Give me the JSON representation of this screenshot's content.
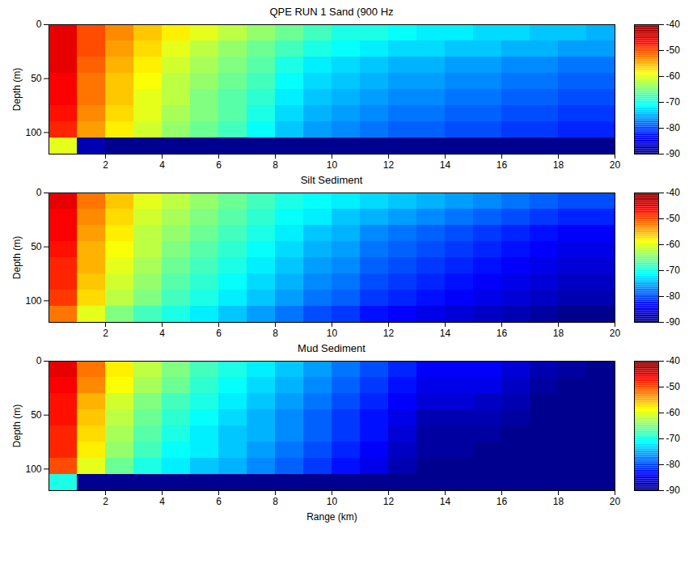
{
  "chart_data": [
    {
      "type": "heatmap",
      "title": "QPE RUN 1 Sand (900 Hz",
      "y_label": "Depth (m)",
      "x": [
        0.5,
        1.5,
        2.5,
        3.5,
        4.5,
        5.5,
        6.5,
        7.5,
        8.5,
        9.5,
        10.5,
        11.5,
        12.5,
        13.5,
        14.5,
        15.5,
        16.5,
        17.5,
        18.5,
        19.5
      ],
      "y": [
        7.5,
        22.5,
        37.5,
        52.5,
        67.5,
        82.5,
        97.5,
        112.5
      ],
      "values": [
        [
          -45,
          -50,
          -53,
          -56,
          -58,
          -60,
          -62,
          -64,
          -66,
          -68,
          -70,
          -70,
          -71,
          -72,
          -72,
          -73,
          -73,
          -74,
          -74,
          -75
        ],
        [
          -45,
          -50,
          -54,
          -57,
          -60,
          -62,
          -64,
          -66,
          -68,
          -70,
          -71,
          -72,
          -73,
          -73,
          -74,
          -74,
          -75,
          -75,
          -76,
          -76
        ],
        [
          -45,
          -51,
          -55,
          -58,
          -61,
          -63,
          -65,
          -67,
          -70,
          -72,
          -73,
          -74,
          -75,
          -75,
          -76,
          -76,
          -77,
          -77,
          -78,
          -78
        ],
        [
          -46,
          -52,
          -56,
          -59,
          -62,
          -64,
          -66,
          -68,
          -71,
          -73,
          -74,
          -75,
          -76,
          -76,
          -77,
          -77,
          -78,
          -78,
          -79,
          -79
        ],
        [
          -46,
          -52,
          -56,
          -60,
          -62,
          -65,
          -67,
          -69,
          -72,
          -74,
          -75,
          -76,
          -77,
          -77,
          -78,
          -78,
          -79,
          -79,
          -80,
          -80
        ],
        [
          -47,
          -53,
          -57,
          -60,
          -63,
          -65,
          -67,
          -70,
          -73,
          -75,
          -76,
          -77,
          -78,
          -78,
          -79,
          -79,
          -80,
          -80,
          -81,
          -81
        ],
        [
          -48,
          -54,
          -58,
          -61,
          -64,
          -66,
          -68,
          -71,
          -74,
          -76,
          -77,
          -78,
          -79,
          -79,
          -80,
          -80,
          -81,
          -81,
          -82,
          -82
        ],
        [
          -60,
          -88,
          -90,
          -90,
          -90,
          -90,
          -90,
          -90,
          -90,
          -90,
          -90,
          -90,
          -90,
          -90,
          -90,
          -90,
          -90,
          -90,
          -90,
          -90
        ]
      ],
      "xlim": [
        0,
        20
      ],
      "xticks": [
        2,
        4,
        6,
        8,
        10,
        12,
        14,
        16,
        18,
        20
      ],
      "ylim": [
        0,
        120
      ],
      "yticks": [
        0,
        50,
        100
      ],
      "colorbar": {
        "range": [
          -90,
          -40
        ],
        "ticks": [
          -40,
          -50,
          -60,
          -70,
          -80,
          -90
        ]
      }
    },
    {
      "type": "heatmap",
      "title": "Silt Sediment",
      "y_label": "Depth (m)",
      "x": [
        0.5,
        1.5,
        2.5,
        3.5,
        4.5,
        5.5,
        6.5,
        7.5,
        8.5,
        9.5,
        10.5,
        11.5,
        12.5,
        13.5,
        14.5,
        15.5,
        16.5,
        17.5,
        18.5,
        19.5
      ],
      "y": [
        7.5,
        22.5,
        37.5,
        52.5,
        67.5,
        82.5,
        97.5,
        112.5
      ],
      "values": [
        [
          -45,
          -52,
          -56,
          -60,
          -62,
          -64,
          -66,
          -68,
          -70,
          -71,
          -72,
          -73,
          -74,
          -75,
          -76,
          -77,
          -78,
          -79,
          -80,
          -80
        ],
        [
          -46,
          -53,
          -57,
          -61,
          -63,
          -65,
          -67,
          -69,
          -71,
          -72,
          -74,
          -75,
          -76,
          -77,
          -78,
          -79,
          -80,
          -81,
          -82,
          -82
        ],
        [
          -46,
          -54,
          -58,
          -62,
          -64,
          -66,
          -68,
          -70,
          -72,
          -74,
          -75,
          -77,
          -78,
          -79,
          -80,
          -81,
          -82,
          -83,
          -84,
          -84
        ],
        [
          -47,
          -55,
          -59,
          -62,
          -65,
          -67,
          -69,
          -71,
          -73,
          -75,
          -76,
          -78,
          -79,
          -80,
          -81,
          -82,
          -83,
          -84,
          -85,
          -85
        ],
        [
          -48,
          -55,
          -60,
          -63,
          -66,
          -68,
          -70,
          -72,
          -74,
          -76,
          -77,
          -79,
          -80,
          -81,
          -82,
          -83,
          -84,
          -85,
          -86,
          -86
        ],
        [
          -48,
          -56,
          -61,
          -64,
          -67,
          -69,
          -71,
          -73,
          -75,
          -77,
          -78,
          -80,
          -81,
          -82,
          -83,
          -84,
          -85,
          -86,
          -87,
          -87
        ],
        [
          -49,
          -57,
          -62,
          -65,
          -68,
          -70,
          -72,
          -74,
          -76,
          -78,
          -79,
          -81,
          -82,
          -83,
          -84,
          -85,
          -86,
          -87,
          -88,
          -88
        ],
        [
          -52,
          -60,
          -65,
          -68,
          -70,
          -72,
          -74,
          -76,
          -78,
          -80,
          -81,
          -83,
          -84,
          -85,
          -86,
          -87,
          -88,
          -89,
          -90,
          -90
        ]
      ],
      "xlim": [
        0,
        20
      ],
      "xticks": [
        2,
        4,
        6,
        8,
        10,
        12,
        14,
        16,
        18,
        20
      ],
      "ylim": [
        0,
        120
      ],
      "yticks": [
        0,
        50,
        100
      ],
      "colorbar": {
        "range": [
          -90,
          -40
        ],
        "ticks": [
          -40,
          -50,
          -60,
          -70,
          -80,
          -90
        ]
      }
    },
    {
      "type": "heatmap",
      "title": "Mud Sediment",
      "x_label": "Range (km)",
      "y_label": "Depth (m)",
      "x": [
        0.5,
        1.5,
        2.5,
        3.5,
        4.5,
        5.5,
        6.5,
        7.5,
        8.5,
        9.5,
        10.5,
        11.5,
        12.5,
        13.5,
        14.5,
        15.5,
        16.5,
        17.5,
        18.5,
        19.5
      ],
      "y": [
        7.5,
        22.5,
        37.5,
        52.5,
        67.5,
        82.5,
        97.5,
        112.5
      ],
      "values": [
        [
          -45,
          -52,
          -58,
          -62,
          -65,
          -68,
          -70,
          -72,
          -74,
          -76,
          -78,
          -80,
          -82,
          -84,
          -84,
          -84,
          -86,
          -88,
          -89,
          -90
        ],
        [
          -46,
          -53,
          -59,
          -63,
          -66,
          -69,
          -71,
          -73,
          -75,
          -77,
          -79,
          -81,
          -83,
          -85,
          -85,
          -85,
          -87,
          -89,
          -90,
          -90
        ],
        [
          -47,
          -55,
          -61,
          -65,
          -68,
          -70,
          -72,
          -74,
          -76,
          -78,
          -80,
          -82,
          -84,
          -86,
          -86,
          -87,
          -88,
          -90,
          -90,
          -90
        ],
        [
          -47,
          -56,
          -62,
          -66,
          -69,
          -71,
          -73,
          -75,
          -77,
          -79,
          -81,
          -83,
          -85,
          -88,
          -88,
          -88,
          -89,
          -90,
          -90,
          -90
        ],
        [
          -48,
          -57,
          -63,
          -67,
          -70,
          -72,
          -74,
          -75,
          -77,
          -79,
          -81,
          -83,
          -86,
          -89,
          -89,
          -89,
          -90,
          -90,
          -90,
          -90
        ],
        [
          -48,
          -58,
          -64,
          -68,
          -71,
          -72,
          -74,
          -76,
          -78,
          -80,
          -82,
          -84,
          -87,
          -89,
          -89,
          -90,
          -90,
          -90,
          -90,
          -90
        ],
        [
          -50,
          -60,
          -66,
          -70,
          -72,
          -74,
          -75,
          -77,
          -79,
          -81,
          -83,
          -85,
          -88,
          -90,
          -90,
          -90,
          -90,
          -90,
          -90,
          -90
        ],
        [
          -70,
          -90,
          -90,
          -90,
          -90,
          -90,
          -90,
          -90,
          -90,
          -90,
          -90,
          -90,
          -90,
          -90,
          -90,
          -90,
          -90,
          -90,
          -90,
          -90
        ]
      ],
      "xlim": [
        0,
        20
      ],
      "xticks": [
        2,
        4,
        6,
        8,
        10,
        12,
        14,
        16,
        18,
        20
      ],
      "ylim": [
        0,
        120
      ],
      "yticks": [
        0,
        50,
        100
      ],
      "colorbar": {
        "range": [
          -90,
          -40
        ],
        "ticks": [
          -40,
          -50,
          -60,
          -70,
          -80,
          -90
        ]
      }
    }
  ]
}
